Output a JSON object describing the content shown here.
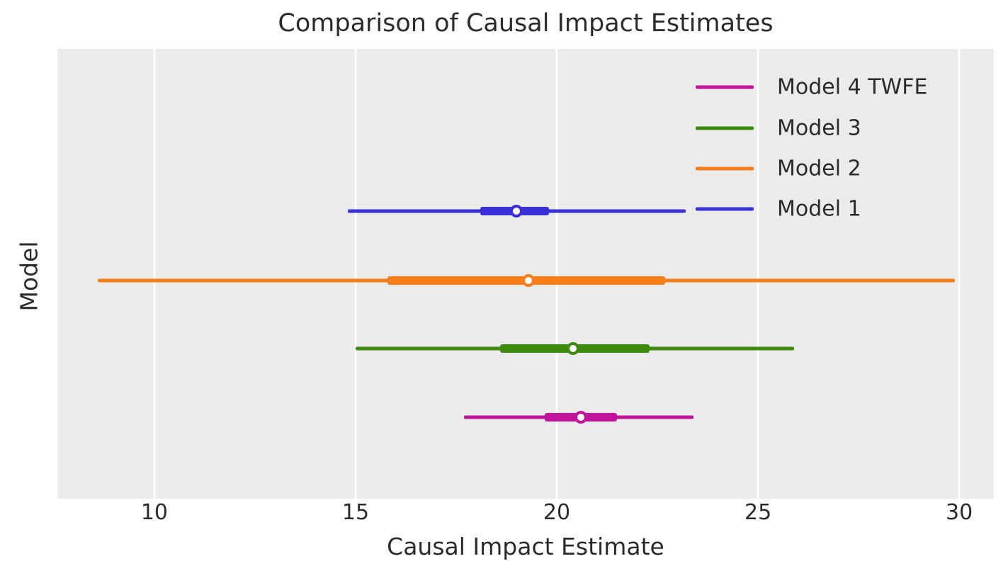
{
  "figure": {
    "title": "Comparison of Causal Impact Estimates",
    "xlabel": "Causal Impact Estimate",
    "ylabel": "Model"
  },
  "chart_data": {
    "type": "scatter",
    "subtype": "interval-forest-plot",
    "title": "Comparison of Causal Impact Estimates",
    "xlabel": "Causal Impact Estimate",
    "ylabel": "Model",
    "xlim": [
      7.59,
      30.86
    ],
    "x_ticks": [
      10,
      15,
      20,
      25,
      30
    ],
    "grid": true,
    "background_color": "#ebebeb",
    "gridline_color": "#ffffff",
    "text_color": "#2b2b2b",
    "marker_fill": "#ffffff",
    "legend_position": "upper right",
    "legend_frame": false,
    "series": [
      {
        "name": "Model 1",
        "color": "#3a30d8",
        "median": 19.0,
        "interval_thick": [
          18.1,
          19.8
        ],
        "interval_thin": [
          14.8,
          23.2
        ]
      },
      {
        "name": "Model 2",
        "color": "#f87e1b",
        "median": 19.3,
        "interval_thick": [
          15.8,
          22.7
        ],
        "interval_thin": [
          8.6,
          29.9
        ]
      },
      {
        "name": "Model 3",
        "color": "#3c8a0e",
        "median": 20.4,
        "interval_thick": [
          18.6,
          22.3
        ],
        "interval_thin": [
          15.0,
          25.9
        ]
      },
      {
        "name": "Model 4 TWFE",
        "color": "#c0159a",
        "median": 20.6,
        "interval_thick": [
          19.7,
          21.5
        ],
        "interval_thin": [
          17.7,
          23.4
        ]
      }
    ],
    "legend": [
      "Model 4 TWFE",
      "Model 3",
      "Model 2",
      "Model 1"
    ]
  }
}
